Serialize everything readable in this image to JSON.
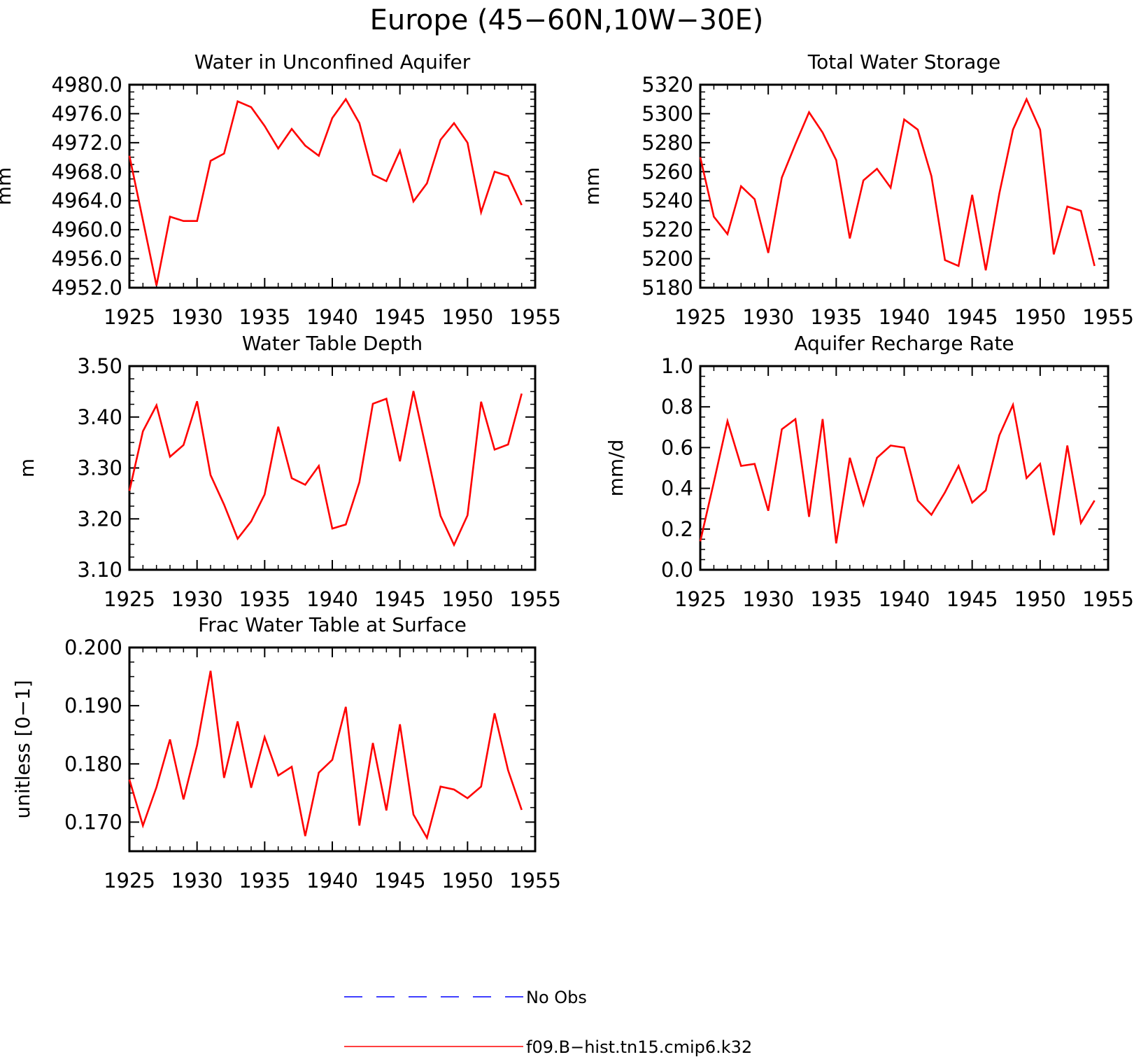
{
  "title": "Europe (45−60N,10W−30E)",
  "colors": {
    "model": "#ff0000",
    "obs": "#0000ff",
    "axis": "#000000"
  },
  "legend": {
    "entries": [
      {
        "label": "No Obs",
        "style": "dashed",
        "color": "#0000ff"
      },
      {
        "label": "f09.B−hist.tn15.cmip6.k32",
        "style": "solid",
        "color": "#ff0000"
      }
    ]
  },
  "chart_data": [
    {
      "type": "line",
      "title": "Water in Unconfined Aquifer",
      "ylabel": "mm",
      "xlim": [
        1925,
        1955
      ],
      "ylim": [
        4952,
        4980
      ],
      "xticks": [
        "1925",
        "1930",
        "1935",
        "1940",
        "1945",
        "1950",
        "1955"
      ],
      "yticks": [
        "4952.0",
        "4956.0",
        "4960.0",
        "4964.0",
        "4968.0",
        "4972.0",
        "4976.0",
        "4980.0"
      ],
      "x": [
        1925,
        1926,
        1927,
        1928,
        1929,
        1930,
        1931,
        1932,
        1933,
        1934,
        1935,
        1936,
        1937,
        1938,
        1939,
        1940,
        1941,
        1942,
        1943,
        1944,
        1945,
        1946,
        1947,
        1948,
        1949,
        1950,
        1951,
        1952,
        1953,
        1954
      ],
      "series": [
        {
          "name": "f09.B−hist.tn15.cmip6.k32",
          "values": [
            4970.2,
            4961.3,
            4952.3,
            4961.8,
            4961.2,
            4961.2,
            4969.5,
            4970.5,
            4977.7,
            4976.9,
            4974.3,
            4971.2,
            4973.9,
            4971.6,
            4970.2,
            4975.4,
            4978.0,
            4974.7,
            4967.6,
            4966.7,
            4970.9,
            4963.9,
            4966.4,
            4972.4,
            4974.7,
            4972.0,
            4962.4,
            4968.0,
            4967.4,
            4963.4
          ]
        }
      ]
    },
    {
      "type": "line",
      "title": "Total Water Storage",
      "ylabel": "mm",
      "xlim": [
        1925,
        1955
      ],
      "ylim": [
        5180,
        5320
      ],
      "xticks": [
        "1925",
        "1930",
        "1935",
        "1940",
        "1945",
        "1950",
        "1955"
      ],
      "yticks": [
        "5180",
        "5200",
        "5220",
        "5240",
        "5260",
        "5280",
        "5300",
        "5320"
      ],
      "x": [
        1925,
        1926,
        1927,
        1928,
        1929,
        1930,
        1931,
        1932,
        1933,
        1934,
        1935,
        1936,
        1937,
        1938,
        1939,
        1940,
        1941,
        1942,
        1943,
        1944,
        1945,
        1946,
        1947,
        1948,
        1949,
        1950,
        1951,
        1952,
        1953,
        1954
      ],
      "series": [
        {
          "name": "f09.B−hist.tn15.cmip6.k32",
          "values": [
            5270,
            5229,
            5217,
            5250,
            5241,
            5204,
            5256,
            5279,
            5301,
            5287,
            5268,
            5214,
            5254,
            5262,
            5249,
            5296,
            5289,
            5257,
            5199,
            5195,
            5244,
            5192,
            5245,
            5289,
            5310,
            5289,
            5203,
            5236,
            5233,
            5195
          ]
        }
      ]
    },
    {
      "type": "line",
      "title": "Water Table Depth",
      "ylabel": "m",
      "xlim": [
        1925,
        1955
      ],
      "ylim": [
        3.1,
        3.5
      ],
      "xticks": [
        "1925",
        "1930",
        "1935",
        "1940",
        "1945",
        "1950",
        "1955"
      ],
      "yticks": [
        "3.10",
        "3.20",
        "3.30",
        "3.40",
        "3.50"
      ],
      "x": [
        1925,
        1926,
        1927,
        1928,
        1929,
        1930,
        1931,
        1932,
        1933,
        1934,
        1935,
        1936,
        1937,
        1938,
        1939,
        1940,
        1941,
        1942,
        1943,
        1944,
        1945,
        1946,
        1947,
        1948,
        1949,
        1950,
        1951,
        1952,
        1953,
        1954
      ],
      "series": [
        {
          "name": "f09.B−hist.tn15.cmip6.k32",
          "values": [
            3.255,
            3.372,
            3.423,
            3.322,
            3.345,
            3.431,
            3.286,
            3.228,
            3.161,
            3.195,
            3.248,
            3.381,
            3.28,
            3.267,
            3.304,
            3.181,
            3.189,
            3.272,
            3.426,
            3.436,
            3.313,
            3.451,
            3.33,
            3.206,
            3.149,
            3.207,
            3.43,
            3.336,
            3.346,
            3.446
          ]
        }
      ]
    },
    {
      "type": "line",
      "title": "Aquifer Recharge Rate",
      "ylabel": "mm/d",
      "xlim": [
        1925,
        1955
      ],
      "ylim": [
        0.0,
        1.0
      ],
      "xticks": [
        "1925",
        "1930",
        "1935",
        "1940",
        "1945",
        "1950",
        "1955"
      ],
      "yticks": [
        "0.0",
        "0.2",
        "0.4",
        "0.6",
        "0.8",
        "1.0"
      ],
      "x": [
        1925,
        1926,
        1927,
        1928,
        1929,
        1930,
        1931,
        1932,
        1933,
        1934,
        1935,
        1936,
        1937,
        1938,
        1939,
        1940,
        1941,
        1942,
        1943,
        1944,
        1945,
        1946,
        1947,
        1948,
        1949,
        1950,
        1951,
        1952,
        1953,
        1954
      ],
      "series": [
        {
          "name": "f09.B−hist.tn15.cmip6.k32",
          "values": [
            0.14,
            0.43,
            0.73,
            0.51,
            0.52,
            0.29,
            0.69,
            0.74,
            0.26,
            0.74,
            0.13,
            0.55,
            0.32,
            0.55,
            0.61,
            0.6,
            0.34,
            0.27,
            0.38,
            0.51,
            0.33,
            0.39,
            0.66,
            0.81,
            0.45,
            0.52,
            0.17,
            0.61,
            0.23,
            0.34
          ]
        }
      ]
    },
    {
      "type": "line",
      "title": "Frac Water Table at Surface",
      "ylabel": "unitless [0−1]",
      "xlim": [
        1925,
        1955
      ],
      "ylim": [
        0.165,
        0.2
      ],
      "xticks": [
        "1925",
        "1930",
        "1935",
        "1940",
        "1945",
        "1950",
        "1955"
      ],
      "yticks": [
        "0.170",
        "0.180",
        "0.190",
        "0.200"
      ],
      "x": [
        1925,
        1926,
        1927,
        1928,
        1929,
        1930,
        1931,
        1932,
        1933,
        1934,
        1935,
        1936,
        1937,
        1938,
        1939,
        1940,
        1941,
        1942,
        1943,
        1944,
        1945,
        1946,
        1947,
        1948,
        1949,
        1950,
        1951,
        1952,
        1953,
        1954
      ],
      "series": [
        {
          "name": "f09.B−hist.tn15.cmip6.k32",
          "values": [
            0.1773,
            0.1694,
            0.176,
            0.1842,
            0.1739,
            0.1832,
            0.196,
            0.1776,
            0.1873,
            0.1759,
            0.1846,
            0.178,
            0.1795,
            0.1676,
            0.1785,
            0.1807,
            0.1898,
            0.1694,
            0.1836,
            0.172,
            0.1868,
            0.1713,
            0.1673,
            0.1761,
            0.1756,
            0.1741,
            0.1761,
            0.1887,
            0.1789,
            0.1721
          ]
        }
      ]
    }
  ]
}
